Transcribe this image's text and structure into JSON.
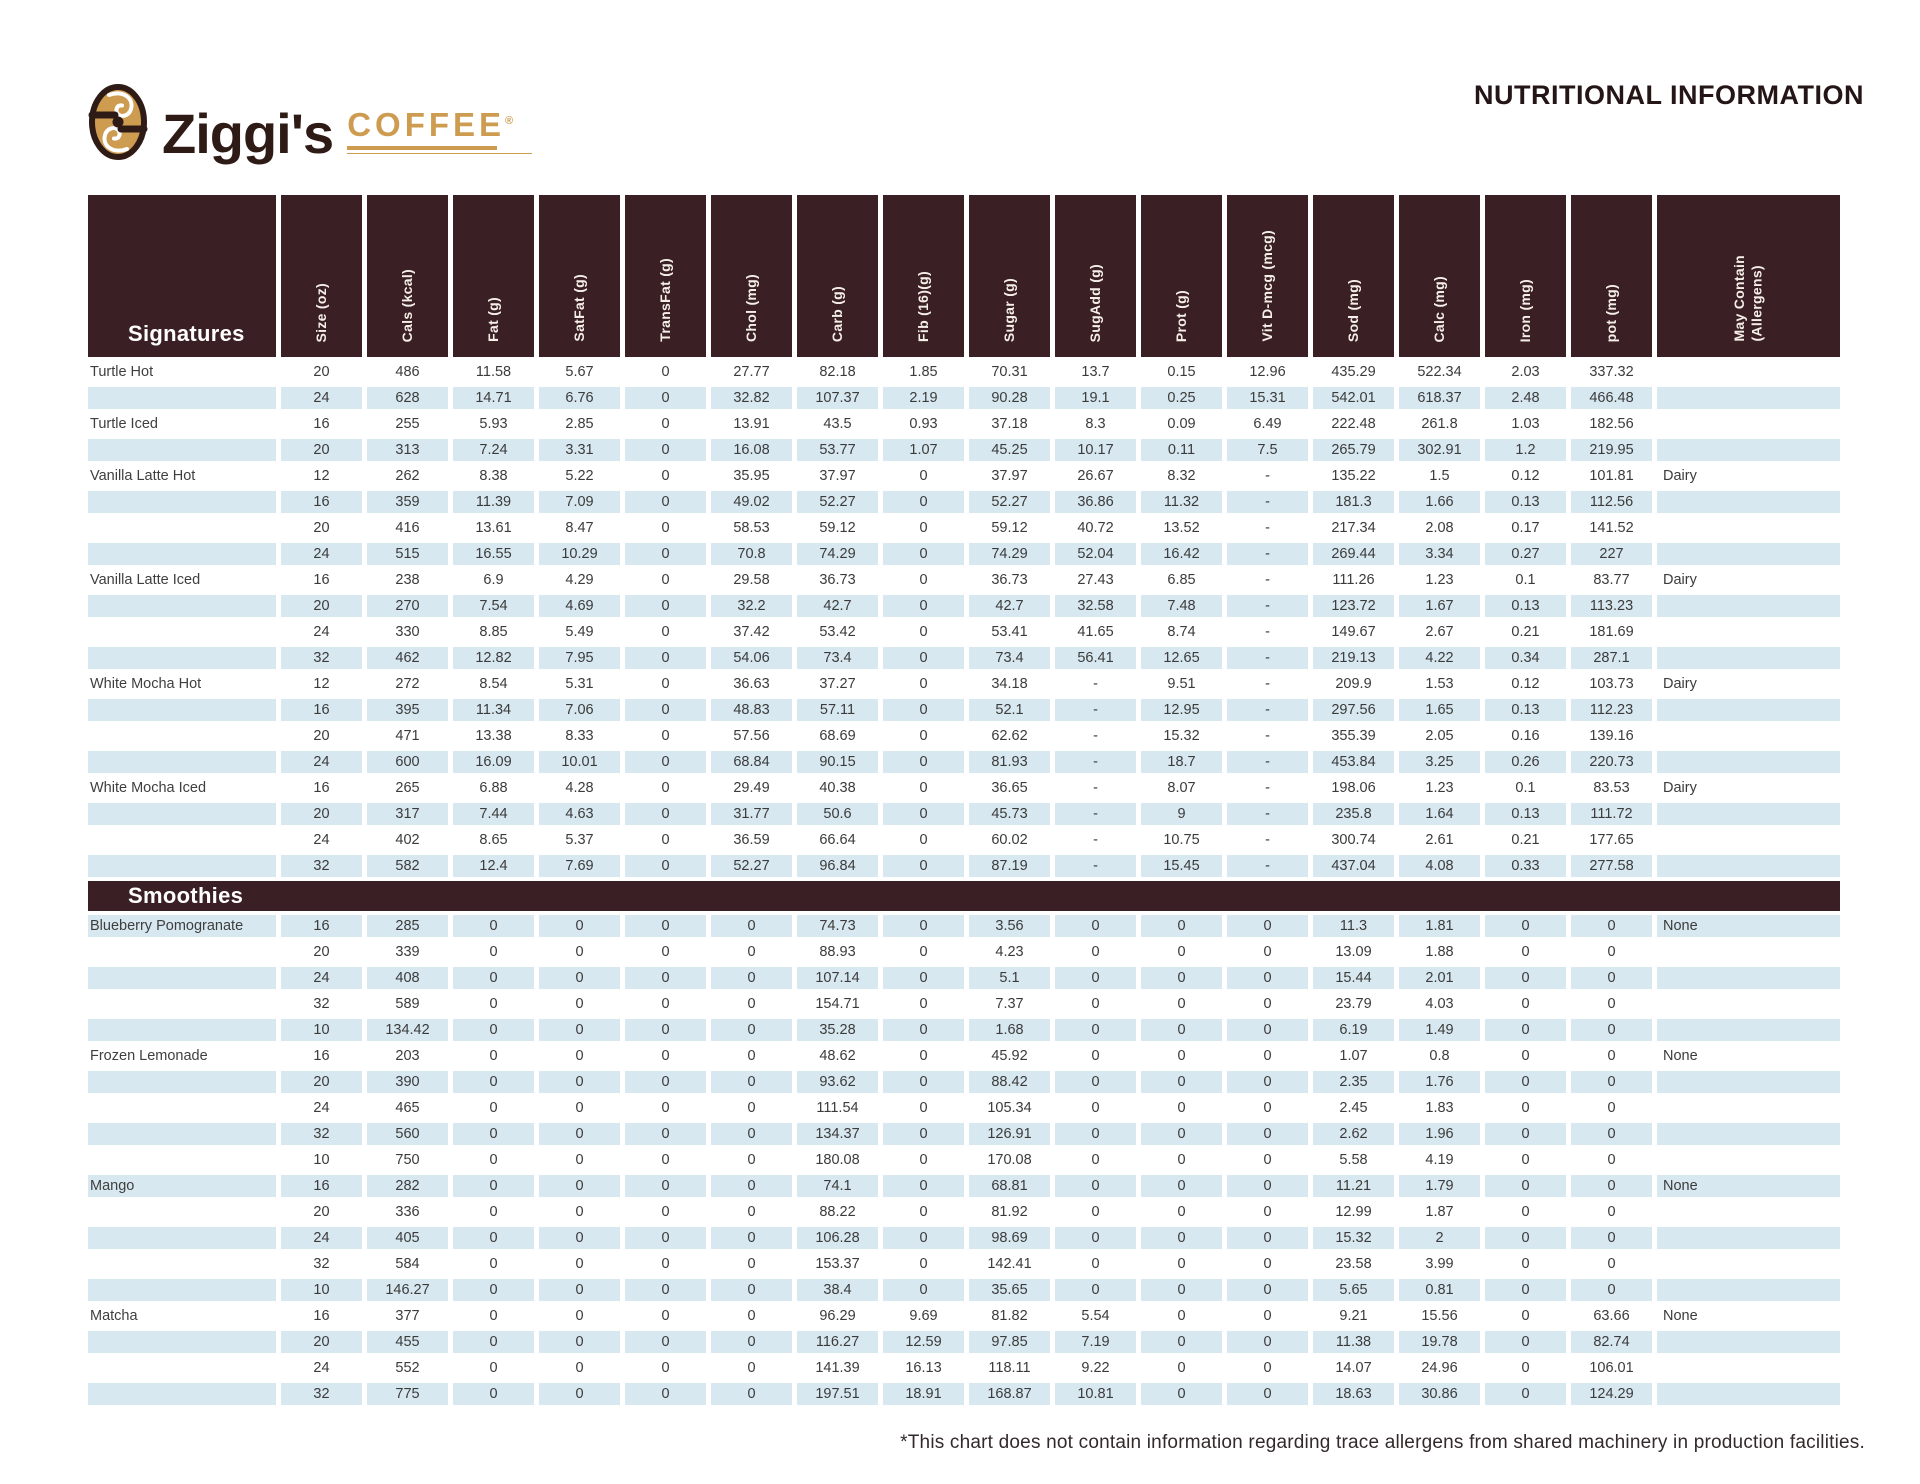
{
  "page": {
    "title": "NUTRITIONAL INFORMATION",
    "brand": {
      "name": "Ziggi's",
      "sub": "COFFEE",
      "reg": "®"
    },
    "footnote": "*This chart does not contain information regarding trace allergens from shared machinery in production facilities."
  },
  "colors": {
    "header_bg": "#3A2024",
    "row_alt": "#D8E8F0",
    "brand_gold": "#CD9C51",
    "brand_dark": "#2F1B16",
    "cell_text": "#3B3B3B"
  },
  "table": {
    "columns": [
      "Size (oz)",
      "Cals (kcal)",
      "Fat (g)",
      "SatFat (g)",
      "TransFat (g)",
      "Chol (mg)",
      "Carb (g)",
      "Fib (16)(g)",
      "Sugar (g)",
      "SugAdd (g)",
      "Prot (g)",
      "Vit D-mcg (mcg)",
      "Sod (mg)",
      "Calc (mg)",
      "Iron (mg)",
      "pot (mg)",
      "May Contain\n(Allergens)"
    ],
    "sections": [
      {
        "label": "Signatures",
        "first_shade": "white",
        "rows": [
          {
            "name": "Turtle Hot",
            "values": [
              "20",
              "486",
              "11.58",
              "5.67",
              "0",
              "27.77",
              "82.18",
              "1.85",
              "70.31",
              "13.7",
              "0.15",
              "12.96",
              "435.29",
              "522.34",
              "2.03",
              "337.32",
              ""
            ]
          },
          {
            "name": "",
            "values": [
              "24",
              "628",
              "14.71",
              "6.76",
              "0",
              "32.82",
              "107.37",
              "2.19",
              "90.28",
              "19.1",
              "0.25",
              "15.31",
              "542.01",
              "618.37",
              "2.48",
              "466.48",
              ""
            ]
          },
          {
            "name": "Turtle Iced",
            "values": [
              "16",
              "255",
              "5.93",
              "2.85",
              "0",
              "13.91",
              "43.5",
              "0.93",
              "37.18",
              "8.3",
              "0.09",
              "6.49",
              "222.48",
              "261.8",
              "1.03",
              "182.56",
              ""
            ]
          },
          {
            "name": "",
            "values": [
              "20",
              "313",
              "7.24",
              "3.31",
              "0",
              "16.08",
              "53.77",
              "1.07",
              "45.25",
              "10.17",
              "0.11",
              "7.5",
              "265.79",
              "302.91",
              "1.2",
              "219.95",
              ""
            ]
          },
          {
            "name": "Vanilla Latte Hot",
            "values": [
              "12",
              "262",
              "8.38",
              "5.22",
              "0",
              "35.95",
              "37.97",
              "0",
              "37.97",
              "26.67",
              "8.32",
              "-",
              "135.22",
              "1.5",
              "0.12",
              "101.81",
              "Dairy"
            ]
          },
          {
            "name": "",
            "values": [
              "16",
              "359",
              "11.39",
              "7.09",
              "0",
              "49.02",
              "52.27",
              "0",
              "52.27",
              "36.86",
              "11.32",
              "-",
              "181.3",
              "1.66",
              "0.13",
              "112.56",
              ""
            ]
          },
          {
            "name": "",
            "values": [
              "20",
              "416",
              "13.61",
              "8.47",
              "0",
              "58.53",
              "59.12",
              "0",
              "59.12",
              "40.72",
              "13.52",
              "-",
              "217.34",
              "2.08",
              "0.17",
              "141.52",
              ""
            ]
          },
          {
            "name": "",
            "values": [
              "24",
              "515",
              "16.55",
              "10.29",
              "0",
              "70.8",
              "74.29",
              "0",
              "74.29",
              "52.04",
              "16.42",
              "-",
              "269.44",
              "3.34",
              "0.27",
              "227",
              ""
            ]
          },
          {
            "name": "Vanilla Latte Iced",
            "values": [
              "16",
              "238",
              "6.9",
              "4.29",
              "0",
              "29.58",
              "36.73",
              "0",
              "36.73",
              "27.43",
              "6.85",
              "-",
              "111.26",
              "1.23",
              "0.1",
              "83.77",
              "Dairy"
            ]
          },
          {
            "name": "",
            "values": [
              "20",
              "270",
              "7.54",
              "4.69",
              "0",
              "32.2",
              "42.7",
              "0",
              "42.7",
              "32.58",
              "7.48",
              "-",
              "123.72",
              "1.67",
              "0.13",
              "113.23",
              ""
            ]
          },
          {
            "name": "",
            "values": [
              "24",
              "330",
              "8.85",
              "5.49",
              "0",
              "37.42",
              "53.42",
              "0",
              "53.41",
              "41.65",
              "8.74",
              "-",
              "149.67",
              "2.67",
              "0.21",
              "181.69",
              ""
            ]
          },
          {
            "name": "",
            "values": [
              "32",
              "462",
              "12.82",
              "7.95",
              "0",
              "54.06",
              "73.4",
              "0",
              "73.4",
              "56.41",
              "12.65",
              "-",
              "219.13",
              "4.22",
              "0.34",
              "287.1",
              ""
            ]
          },
          {
            "name": "White Mocha Hot",
            "values": [
              "12",
              "272",
              "8.54",
              "5.31",
              "0",
              "36.63",
              "37.27",
              "0",
              "34.18",
              "-",
              "9.51",
              "-",
              "209.9",
              "1.53",
              "0.12",
              "103.73",
              "Dairy"
            ]
          },
          {
            "name": "",
            "values": [
              "16",
              "395",
              "11.34",
              "7.06",
              "0",
              "48.83",
              "57.11",
              "0",
              "52.1",
              "-",
              "12.95",
              "-",
              "297.56",
              "1.65",
              "0.13",
              "112.23",
              ""
            ]
          },
          {
            "name": "",
            "values": [
              "20",
              "471",
              "13.38",
              "8.33",
              "0",
              "57.56",
              "68.69",
              "0",
              "62.62",
              "-",
              "15.32",
              "-",
              "355.39",
              "2.05",
              "0.16",
              "139.16",
              ""
            ]
          },
          {
            "name": "",
            "values": [
              "24",
              "600",
              "16.09",
              "10.01",
              "0",
              "68.84",
              "90.15",
              "0",
              "81.93",
              "-",
              "18.7",
              "-",
              "453.84",
              "3.25",
              "0.26",
              "220.73",
              ""
            ]
          },
          {
            "name": "White Mocha Iced",
            "values": [
              "16",
              "265",
              "6.88",
              "4.28",
              "0",
              "29.49",
              "40.38",
              "0",
              "36.65",
              "-",
              "8.07",
              "-",
              "198.06",
              "1.23",
              "0.1",
              "83.53",
              "Dairy"
            ]
          },
          {
            "name": "",
            "values": [
              "20",
              "317",
              "7.44",
              "4.63",
              "0",
              "31.77",
              "50.6",
              "0",
              "45.73",
              "-",
              "9",
              "-",
              "235.8",
              "1.64",
              "0.13",
              "111.72",
              ""
            ]
          },
          {
            "name": "",
            "values": [
              "24",
              "402",
              "8.65",
              "5.37",
              "0",
              "36.59",
              "66.64",
              "0",
              "60.02",
              "-",
              "10.75",
              "-",
              "300.74",
              "2.61",
              "0.21",
              "177.65",
              ""
            ]
          },
          {
            "name": "",
            "values": [
              "32",
              "582",
              "12.4",
              "7.69",
              "0",
              "52.27",
              "96.84",
              "0",
              "87.19",
              "-",
              "15.45",
              "-",
              "437.04",
              "4.08",
              "0.33",
              "277.58",
              ""
            ]
          }
        ]
      },
      {
        "label": "Smoothies",
        "first_shade": "blue",
        "rows": [
          {
            "name": "Blueberry Pomogranate",
            "values": [
              "16",
              "285",
              "0",
              "0",
              "0",
              "0",
              "74.73",
              "0",
              "3.56",
              "0",
              "0",
              "0",
              "11.3",
              "1.81",
              "0",
              "0",
              "None"
            ]
          },
          {
            "name": "",
            "values": [
              "20",
              "339",
              "0",
              "0",
              "0",
              "0",
              "88.93",
              "0",
              "4.23",
              "0",
              "0",
              "0",
              "13.09",
              "1.88",
              "0",
              "0",
              ""
            ]
          },
          {
            "name": "",
            "values": [
              "24",
              "408",
              "0",
              "0",
              "0",
              "0",
              "107.14",
              "0",
              "5.1",
              "0",
              "0",
              "0",
              "15.44",
              "2.01",
              "0",
              "0",
              ""
            ]
          },
          {
            "name": "",
            "values": [
              "32",
              "589",
              "0",
              "0",
              "0",
              "0",
              "154.71",
              "0",
              "7.37",
              "0",
              "0",
              "0",
              "23.79",
              "4.03",
              "0",
              "0",
              ""
            ]
          },
          {
            "name": "",
            "values": [
              "10",
              "134.42",
              "0",
              "0",
              "0",
              "0",
              "35.28",
              "0",
              "1.68",
              "0",
              "0",
              "0",
              "6.19",
              "1.49",
              "0",
              "0",
              ""
            ]
          },
          {
            "name": "Frozen Lemonade",
            "values": [
              "16",
              "203",
              "0",
              "0",
              "0",
              "0",
              "48.62",
              "0",
              "45.92",
              "0",
              "0",
              "0",
              "1.07",
              "0.8",
              "0",
              "0",
              "None"
            ]
          },
          {
            "name": "",
            "values": [
              "20",
              "390",
              "0",
              "0",
              "0",
              "0",
              "93.62",
              "0",
              "88.42",
              "0",
              "0",
              "0",
              "2.35",
              "1.76",
              "0",
              "0",
              ""
            ]
          },
          {
            "name": "",
            "values": [
              "24",
              "465",
              "0",
              "0",
              "0",
              "0",
              "111.54",
              "0",
              "105.34",
              "0",
              "0",
              "0",
              "2.45",
              "1.83",
              "0",
              "0",
              ""
            ]
          },
          {
            "name": "",
            "values": [
              "32",
              "560",
              "0",
              "0",
              "0",
              "0",
              "134.37",
              "0",
              "126.91",
              "0",
              "0",
              "0",
              "2.62",
              "1.96",
              "0",
              "0",
              ""
            ]
          },
          {
            "name": "",
            "values": [
              "10",
              "750",
              "0",
              "0",
              "0",
              "0",
              "180.08",
              "0",
              "170.08",
              "0",
              "0",
              "0",
              "5.58",
              "4.19",
              "0",
              "0",
              ""
            ]
          },
          {
            "name": "Mango",
            "values": [
              "16",
              "282",
              "0",
              "0",
              "0",
              "0",
              "74.1",
              "0",
              "68.81",
              "0",
              "0",
              "0",
              "11.21",
              "1.79",
              "0",
              "0",
              "None"
            ]
          },
          {
            "name": "",
            "values": [
              "20",
              "336",
              "0",
              "0",
              "0",
              "0",
              "88.22",
              "0",
              "81.92",
              "0",
              "0",
              "0",
              "12.99",
              "1.87",
              "0",
              "0",
              ""
            ]
          },
          {
            "name": "",
            "values": [
              "24",
              "405",
              "0",
              "0",
              "0",
              "0",
              "106.28",
              "0",
              "98.69",
              "0",
              "0",
              "0",
              "15.32",
              "2",
              "0",
              "0",
              ""
            ]
          },
          {
            "name": "",
            "values": [
              "32",
              "584",
              "0",
              "0",
              "0",
              "0",
              "153.37",
              "0",
              "142.41",
              "0",
              "0",
              "0",
              "23.58",
              "3.99",
              "0",
              "0",
              ""
            ]
          },
          {
            "name": "",
            "values": [
              "10",
              "146.27",
              "0",
              "0",
              "0",
              "0",
              "38.4",
              "0",
              "35.65",
              "0",
              "0",
              "0",
              "5.65",
              "0.81",
              "0",
              "0",
              ""
            ]
          },
          {
            "name": "Matcha",
            "values": [
              "16",
              "377",
              "0",
              "0",
              "0",
              "0",
              "96.29",
              "9.69",
              "81.82",
              "5.54",
              "0",
              "0",
              "9.21",
              "15.56",
              "0",
              "63.66",
              "None"
            ]
          },
          {
            "name": "",
            "values": [
              "20",
              "455",
              "0",
              "0",
              "0",
              "0",
              "116.27",
              "12.59",
              "97.85",
              "7.19",
              "0",
              "0",
              "11.38",
              "19.78",
              "0",
              "82.74",
              ""
            ]
          },
          {
            "name": "",
            "values": [
              "24",
              "552",
              "0",
              "0",
              "0",
              "0",
              "141.39",
              "16.13",
              "118.11",
              "9.22",
              "0",
              "0",
              "14.07",
              "24.96",
              "0",
              "106.01",
              ""
            ]
          },
          {
            "name": "",
            "values": [
              "32",
              "775",
              "0",
              "0",
              "0",
              "0",
              "197.51",
              "18.91",
              "168.87",
              "10.81",
              "0",
              "0",
              "18.63",
              "30.86",
              "0",
              "124.29",
              ""
            ]
          }
        ]
      }
    ]
  }
}
